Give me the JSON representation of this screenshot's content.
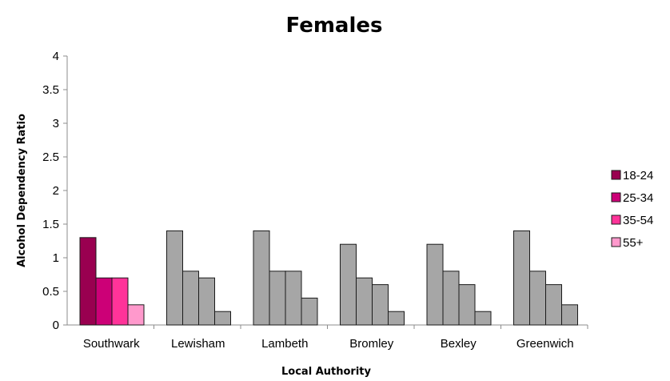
{
  "chart_data": {
    "type": "bar",
    "title": "Females",
    "xlabel": "Local Authority",
    "ylabel": "Alcohol Dependency Ratio",
    "ylim": [
      0,
      4
    ],
    "yticks": [
      "0",
      "0.5",
      "1",
      "1.5",
      "2",
      "2.5",
      "3",
      "3.5",
      "4"
    ],
    "grid": false,
    "legend_position": "right",
    "categories": [
      "Southwark",
      "Lewisham",
      "Lambeth",
      "Bromley",
      "Bexley",
      "Greenwich"
    ],
    "series": [
      {
        "name": "18-24",
        "color": "#990050",
        "values": [
          1.3,
          1.4,
          1.4,
          1.2,
          1.2,
          1.4
        ]
      },
      {
        "name": "25-34",
        "color": "#cc0077",
        "values": [
          0.7,
          0.8,
          0.8,
          0.7,
          0.8,
          0.8
        ]
      },
      {
        "name": "35-54",
        "color": "#ff3399",
        "values": [
          0.7,
          0.7,
          0.8,
          0.6,
          0.6,
          0.6
        ]
      },
      {
        "name": "55+",
        "color": "#ff99cc",
        "values": [
          0.3,
          0.2,
          0.4,
          0.2,
          0.2,
          0.3
        ]
      }
    ],
    "highlight_category": "Southwark",
    "other_color": "#a6a6a6"
  }
}
